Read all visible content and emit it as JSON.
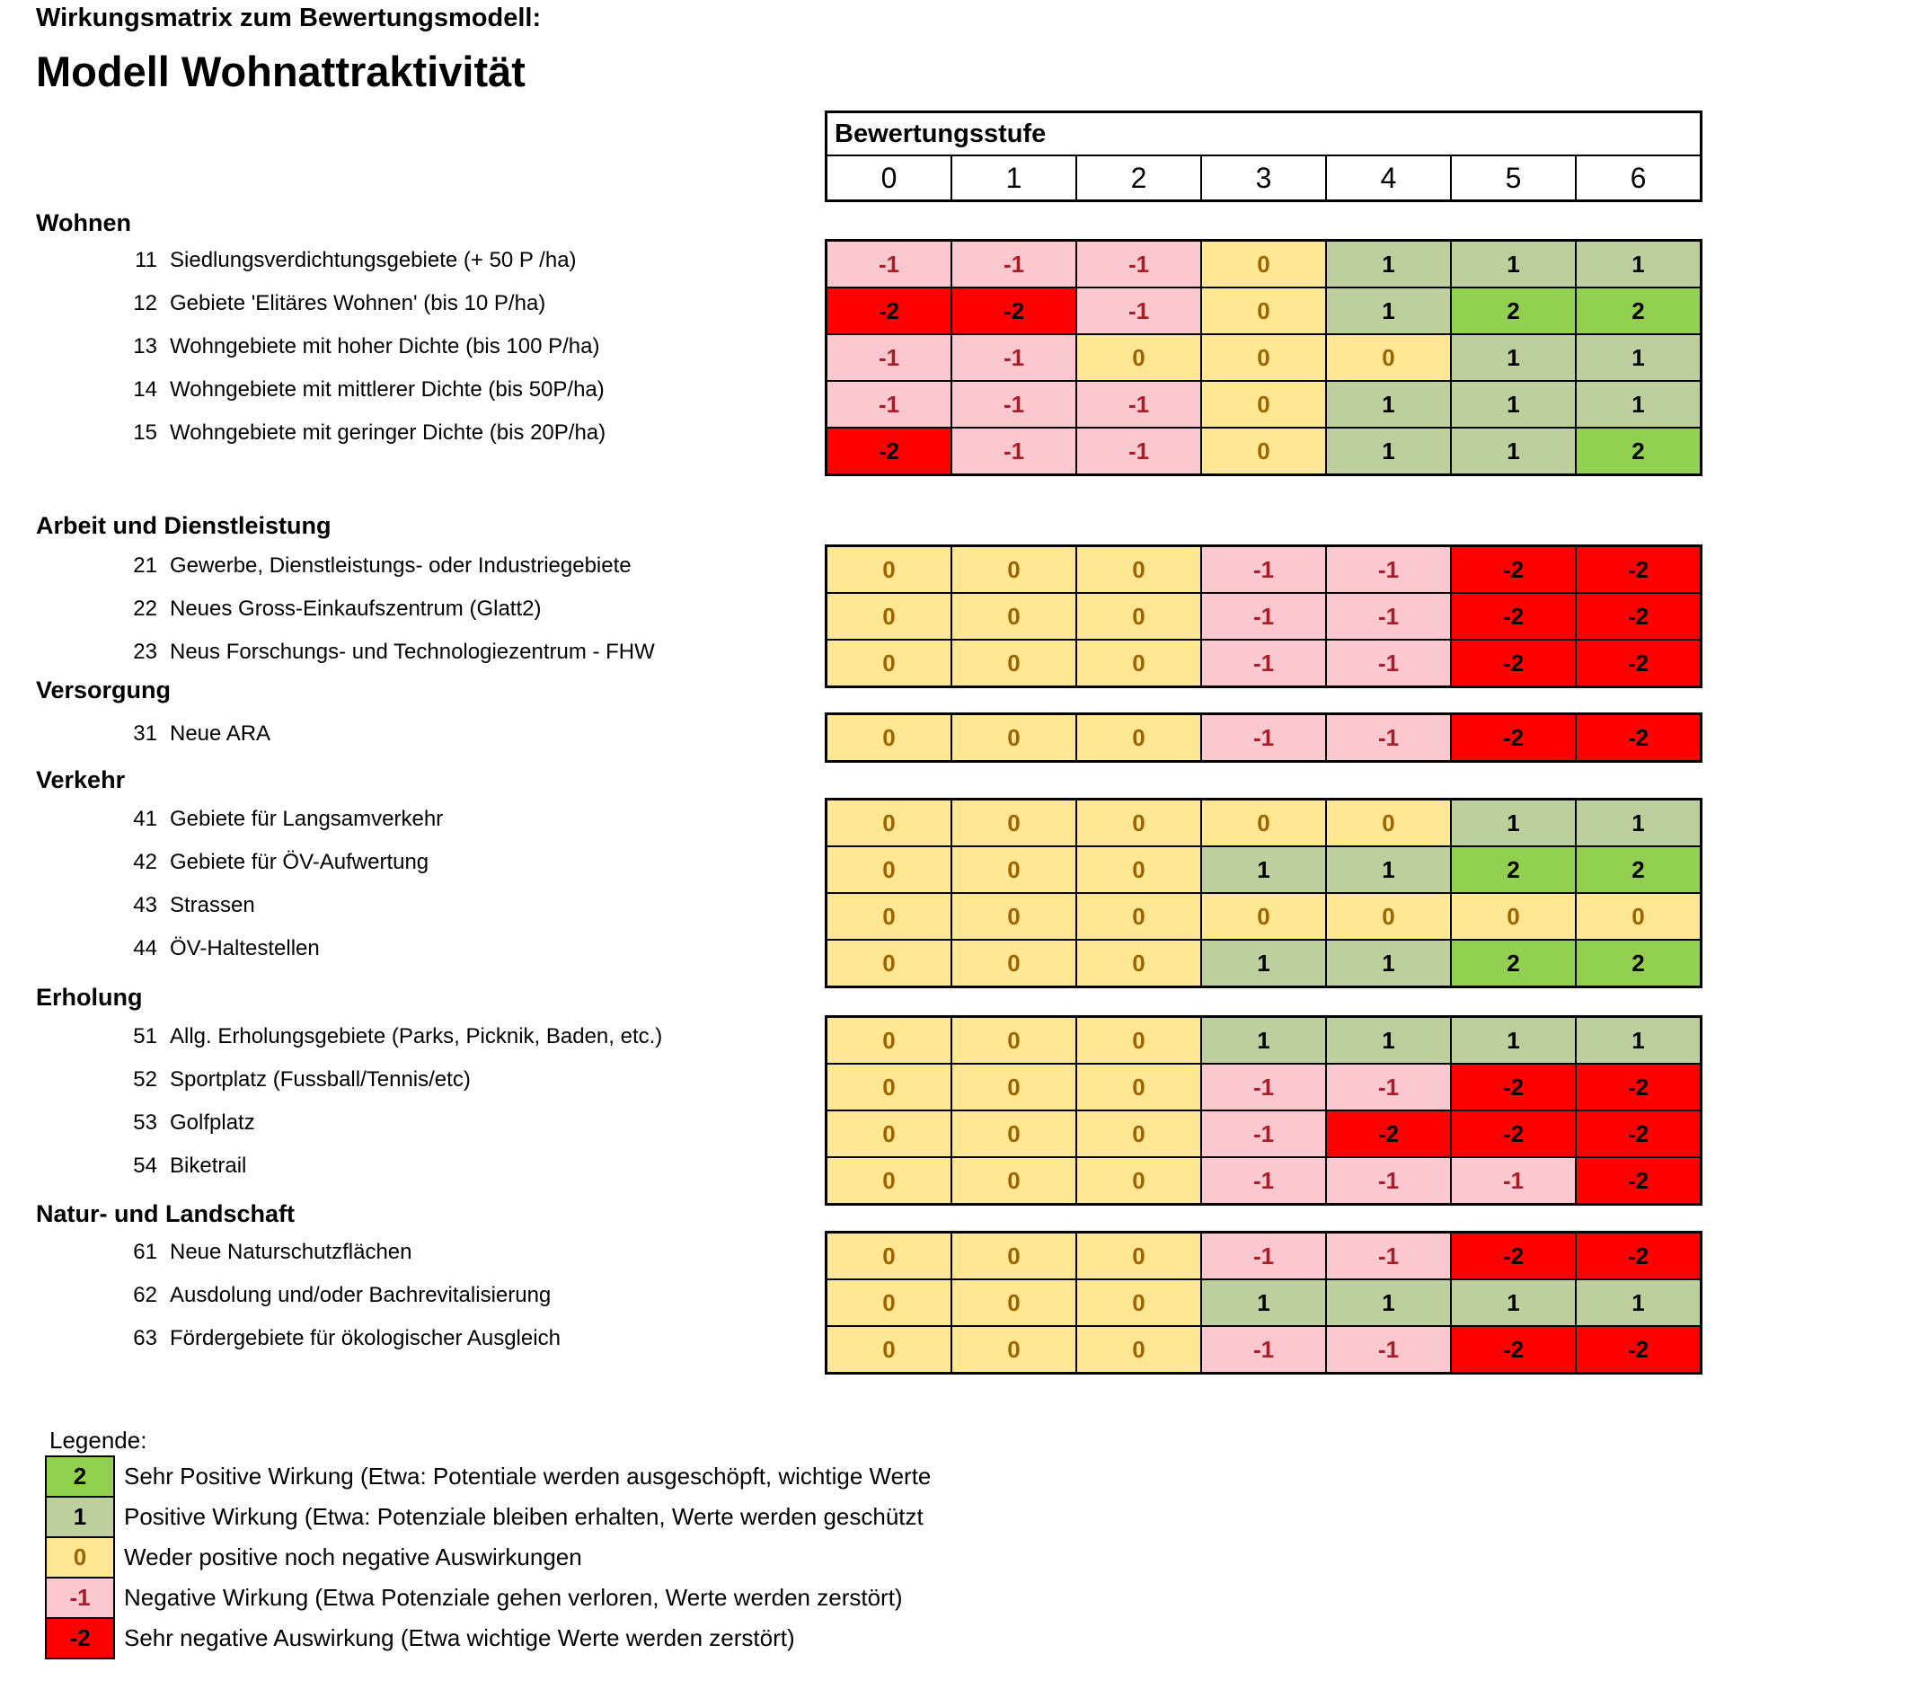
{
  "page": {
    "subtitle": "Wirkungsmatrix zum Bewertungsmodell:",
    "title": "Modell Wohnattraktivität"
  },
  "matrix": {
    "header_label": "Bewertungsstufe",
    "columns": [
      "0",
      "1",
      "2",
      "3",
      "4",
      "5",
      "6"
    ],
    "sections": [
      {
        "name": "Wohnen",
        "rows": [
          {
            "num": "11",
            "label": "Siedlungsverdichtungsgebiete (+ 50 P /ha)",
            "values": [
              -1,
              -1,
              -1,
              0,
              1,
              1,
              1
            ]
          },
          {
            "num": "12",
            "label": "Gebiete 'Elitäres Wohnen' (bis 10 P/ha)",
            "values": [
              -2,
              -2,
              -1,
              0,
              1,
              2,
              2
            ]
          },
          {
            "num": "13",
            "label": "Wohngebiete mit hoher Dichte (bis 100 P/ha)",
            "values": [
              -1,
              -1,
              0,
              0,
              0,
              1,
              1
            ]
          },
          {
            "num": "14",
            "label": "Wohngebiete mit mittlerer Dichte (bis 50P/ha)",
            "values": [
              -1,
              -1,
              -1,
              0,
              1,
              1,
              1
            ]
          },
          {
            "num": "15",
            "label": "Wohngebiete mit geringer Dichte (bis 20P/ha)",
            "values": [
              -2,
              -1,
              -1,
              0,
              1,
              1,
              2
            ]
          }
        ]
      },
      {
        "name": "Arbeit und Dienstleistung",
        "rows": [
          {
            "num": "21",
            "label": "Gewerbe, Dienstleistungs- oder Industriegebiete",
            "values": [
              0,
              0,
              0,
              -1,
              -1,
              -2,
              -2
            ]
          },
          {
            "num": "22",
            "label": "Neues Gross-Einkaufszentrum (Glatt2)",
            "values": [
              0,
              0,
              0,
              -1,
              -1,
              -2,
              -2
            ]
          },
          {
            "num": "23",
            "label": "Neus Forschungs- und Technologiezentrum - FHW",
            "values": [
              0,
              0,
              0,
              -1,
              -1,
              -2,
              -2
            ]
          }
        ]
      },
      {
        "name": "Versorgung",
        "rows": [
          {
            "num": "31",
            "label": "Neue ARA",
            "values": [
              0,
              0,
              0,
              -1,
              -1,
              -2,
              -2
            ]
          }
        ]
      },
      {
        "name": "Verkehr",
        "rows": [
          {
            "num": "41",
            "label": "Gebiete für Langsamverkehr",
            "values": [
              0,
              0,
              0,
              0,
              0,
              1,
              1
            ]
          },
          {
            "num": "42",
            "label": "Gebiete für ÖV-Aufwertung",
            "values": [
              0,
              0,
              0,
              1,
              1,
              2,
              2
            ]
          },
          {
            "num": "43",
            "label": "Strassen",
            "values": [
              0,
              0,
              0,
              0,
              0,
              0,
              0
            ]
          },
          {
            "num": "44",
            "label": "ÖV-Haltestellen",
            "values": [
              0,
              0,
              0,
              1,
              1,
              2,
              2
            ]
          }
        ]
      },
      {
        "name": "Erholung",
        "rows": [
          {
            "num": "51",
            "label": "Allg. Erholungsgebiete (Parks, Picknik, Baden, etc.)",
            "values": [
              0,
              0,
              0,
              1,
              1,
              1,
              1
            ]
          },
          {
            "num": "52",
            "label": "Sportplatz (Fussball/Tennis/etc)",
            "values": [
              0,
              0,
              0,
              -1,
              -1,
              -2,
              -2
            ]
          },
          {
            "num": "53",
            "label": "Golfplatz",
            "values": [
              0,
              0,
              0,
              -1,
              -2,
              -2,
              -2
            ]
          },
          {
            "num": "54",
            "label": "Biketrail",
            "values": [
              0,
              0,
              0,
              -1,
              -1,
              -1,
              -2
            ]
          }
        ]
      },
      {
        "name": "Natur- und Landschaft",
        "rows": [
          {
            "num": "61",
            "label": "Neue Naturschutzflächen",
            "values": [
              0,
              0,
              0,
              -1,
              -1,
              -2,
              -2
            ]
          },
          {
            "num": "62",
            "label": "Ausdolung und/oder Bachrevitalisierung",
            "values": [
              0,
              0,
              0,
              1,
              1,
              1,
              1
            ]
          },
          {
            "num": "63",
            "label": "Fördergebiete für ökologischer Ausgleich",
            "values": [
              0,
              0,
              0,
              -1,
              -1,
              -2,
              -2
            ]
          }
        ]
      }
    ]
  },
  "legend": {
    "title": "Legende:",
    "items": [
      {
        "value": "2",
        "label": "Sehr Positive Wirkung (Etwa: Potentiale werden ausgeschöpft, wichtige Werte"
      },
      {
        "value": "1",
        "label": "Positive Wirkung (Etwa: Potenziale bleiben erhalten, Werte werden geschützt"
      },
      {
        "value": "0",
        "label": "Weder positive noch negative Auswirkungen"
      },
      {
        "value": "-1",
        "label": "Negative Wirkung (Etwa Potenziale gehen verloren, Werte werden zerstört)"
      },
      {
        "value": "-2",
        "label": "Sehr negative Auswirkung (Etwa wichtige Werte werden zerstört)"
      }
    ]
  },
  "colors": {
    "2": {
      "bg": "#92D050",
      "text": "#000000"
    },
    "1": {
      "bg": "#BCCF9C",
      "text": "#000000"
    },
    "0": {
      "bg": "#FFE794",
      "text": "#9C6500"
    },
    "-1": {
      "bg": "#FAC8CE",
      "text": "#A51E28"
    },
    "-2": {
      "bg": "#FE0000",
      "text": "#000000"
    }
  }
}
